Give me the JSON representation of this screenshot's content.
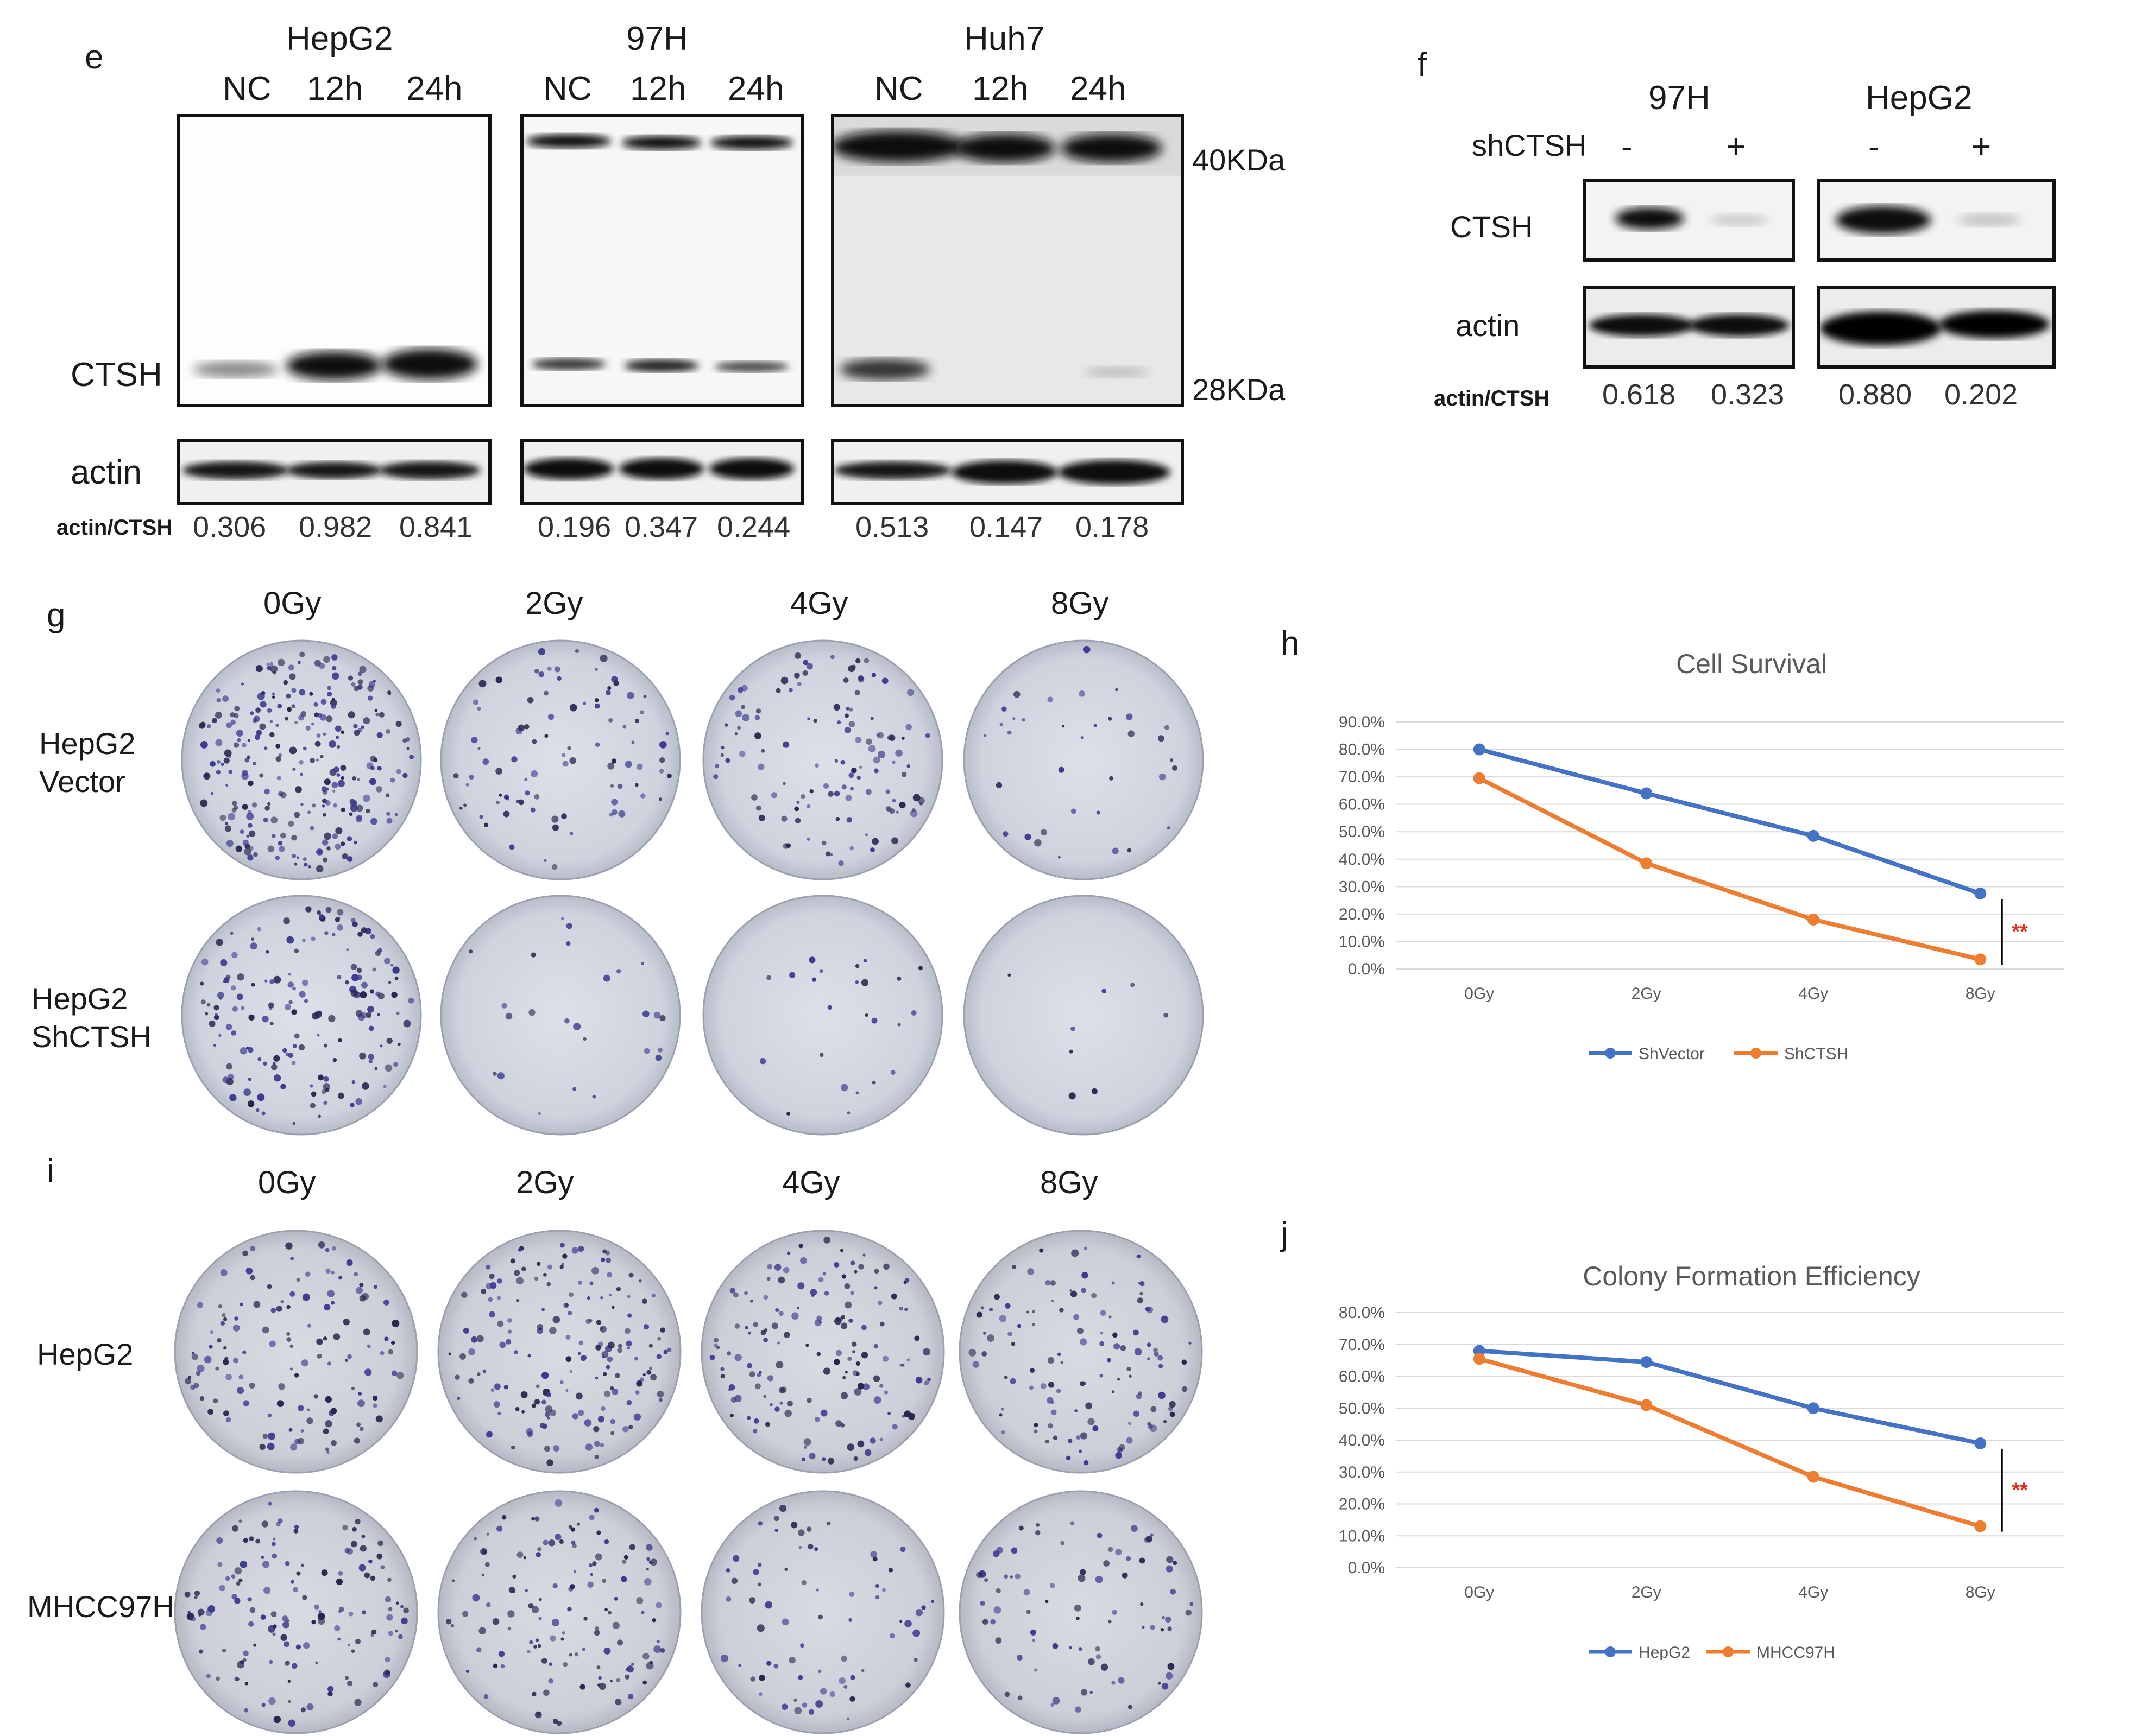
{
  "panel_e": {
    "letter": "e",
    "groups": [
      {
        "name": "HepG2",
        "lanes": [
          "NC",
          "12h",
          "24h"
        ],
        "ratios": [
          "0.306",
          "0.982",
          "0.841"
        ]
      },
      {
        "name": "97H",
        "lanes": [
          "NC",
          "12h",
          "24h"
        ],
        "ratios": [
          "0.196",
          "0.347",
          "0.244"
        ]
      },
      {
        "name": "Huh7",
        "lanes": [
          "NC",
          "12h",
          "24h"
        ],
        "ratios": [
          "0.513",
          "0.147",
          "0.178"
        ]
      }
    ],
    "row_labels": {
      "ctsh": "CTSH",
      "actin": "actin"
    },
    "ratio_label": "actin/CTSH",
    "markers": [
      "40KDa",
      "28KDa"
    ]
  },
  "panel_f": {
    "letter": "f",
    "treatment_label": "shCTSH",
    "groups": [
      {
        "name": "97H",
        "lanes": [
          "-",
          "+"
        ],
        "ratios": [
          "0.618",
          "0.323"
        ]
      },
      {
        "name": "HepG2",
        "lanes": [
          "-",
          "+"
        ],
        "ratios": [
          "0.880",
          "0.202"
        ]
      }
    ],
    "row_labels": {
      "ctsh": "CTSH",
      "actin": "actin"
    },
    "ratio_label": "actin/CTSH"
  },
  "panel_g": {
    "letter": "g",
    "doses": [
      "0Gy",
      "2Gy",
      "4Gy",
      "8Gy"
    ],
    "rows": [
      "HepG2\nVector",
      "HepG2\nShCTSH"
    ]
  },
  "panel_i": {
    "letter": "i",
    "doses": [
      "0Gy",
      "2Gy",
      "4Gy",
      "8Gy"
    ],
    "rows": [
      "HepG2",
      "MHCC97H"
    ]
  },
  "chart_data": [
    {
      "panel": "h",
      "type": "line",
      "title": "Cell Survival",
      "categories": [
        "0Gy",
        "2Gy",
        "4Gy",
        "8Gy"
      ],
      "series": [
        {
          "name": "ShVector",
          "color": "#4472c4",
          "values": [
            80.0,
            64.0,
            48.5,
            27.5
          ]
        },
        {
          "name": "ShCTSH",
          "color": "#ed7d31",
          "values": [
            69.5,
            38.5,
            18.0,
            3.5
          ]
        }
      ],
      "ylim": [
        0,
        90
      ],
      "yticks": [
        "0.0%",
        "10.0%",
        "20.0%",
        "30.0%",
        "40.0%",
        "50.0%",
        "60.0%",
        "70.0%",
        "80.0%",
        "90.0%"
      ],
      "ytick_values": [
        0,
        10,
        20,
        30,
        40,
        50,
        60,
        70,
        80,
        90
      ],
      "grid": true,
      "legend": "bottom",
      "annotation": "**"
    },
    {
      "panel": "j",
      "type": "line",
      "title": "Colony Formation Efficiency",
      "categories": [
        "0Gy",
        "2Gy",
        "4Gy",
        "8Gy"
      ],
      "series": [
        {
          "name": "HepG2",
          "color": "#4472c4",
          "values": [
            68.0,
            64.5,
            50.0,
            39.0
          ]
        },
        {
          "name": "MHCC97H",
          "color": "#ed7d31",
          "values": [
            65.5,
            51.0,
            28.5,
            13.0
          ]
        }
      ],
      "ylim": [
        0,
        80
      ],
      "yticks": [
        "0.0%",
        "10.0%",
        "20.0%",
        "30.0%",
        "40.0%",
        "50.0%",
        "60.0%",
        "70.0%",
        "80.0%"
      ],
      "ytick_values": [
        0,
        10,
        20,
        30,
        40,
        50,
        60,
        70,
        80
      ],
      "grid": true,
      "legend": "bottom",
      "annotation": "**"
    }
  ]
}
